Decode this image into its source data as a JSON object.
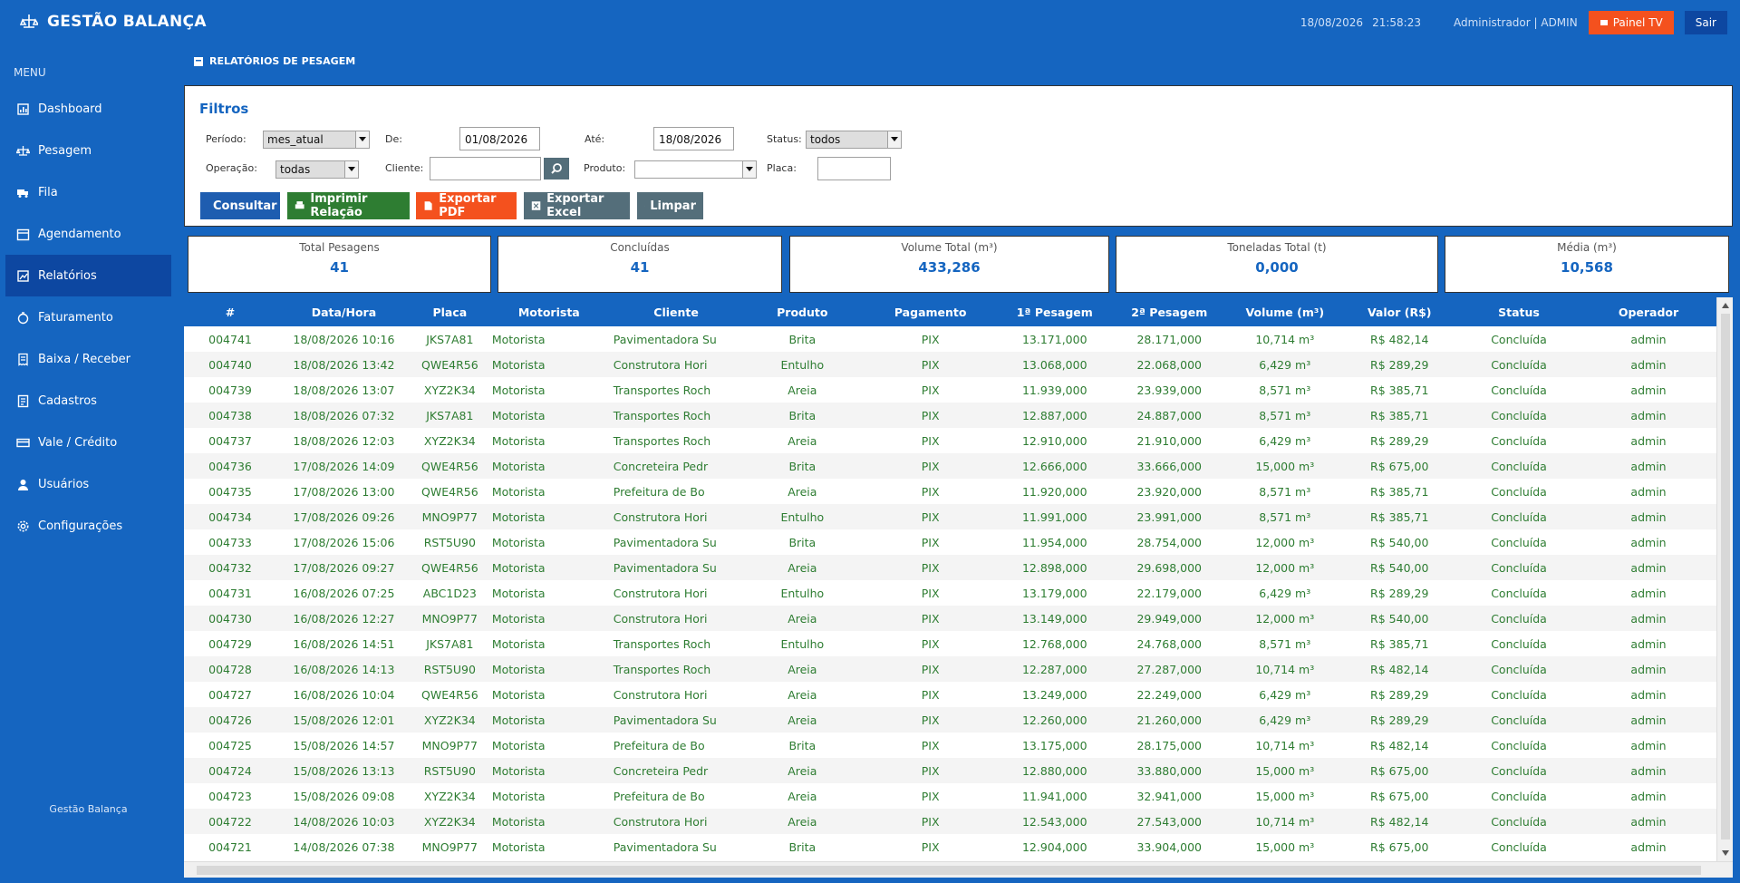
{
  "app": {
    "title": "GESTÃO BALANÇA"
  },
  "header": {
    "date": "18/08/2026",
    "time": "21:58:23",
    "user": "Administrador | ADMIN",
    "tv_label": "Painel TV",
    "logout_label": "Sair"
  },
  "sidebar": {
    "menu_title": "MENU",
    "items": [
      {
        "label": "Dashboard",
        "icon": "chart-icon"
      },
      {
        "label": "Pesagem",
        "icon": "scale-icon"
      },
      {
        "label": "Fila",
        "icon": "truck-icon"
      },
      {
        "label": "Agendamento",
        "icon": "calendar-icon"
      },
      {
        "label": "Relatórios",
        "icon": "report-icon"
      },
      {
        "label": "Faturamento",
        "icon": "money-icon"
      },
      {
        "label": "Baixa / Receber",
        "icon": "receipt-icon"
      },
      {
        "label": "Cadastros",
        "icon": "list-icon"
      },
      {
        "label": "Vale / Crédito",
        "icon": "card-icon"
      },
      {
        "label": "Usuários",
        "icon": "user-icon"
      },
      {
        "label": "Configurações",
        "icon": "gear-icon"
      }
    ],
    "active_index": 4,
    "footer": "Gestão Balança"
  },
  "page": {
    "heading": "RELATÓRIOS DE PESAGEM"
  },
  "filters": {
    "title": "Filtros",
    "periodo_label": "Período:",
    "periodo_value": "mes_atual",
    "de_label": "De:",
    "de_value": "01/08/2026",
    "ate_label": "Até:",
    "ate_value": "18/08/2026",
    "status_label": "Status:",
    "status_value": "todos",
    "operacao_label": "Operação:",
    "operacao_value": "todas",
    "cliente_label": "Cliente:",
    "cliente_value": "",
    "produto_label": "Produto:",
    "produto_value": "",
    "placa_label": "Placa:",
    "placa_value": "",
    "buttons": {
      "consultar": "Consultar",
      "imprimir": "Imprimir Relação",
      "pdf": "Exportar PDF",
      "excel": "Exportar Excel",
      "limpar": "Limpar"
    }
  },
  "kpis": {
    "total_label": "Total Pesagens",
    "total_value": "41",
    "concluidas_label": "Concluídas",
    "concluidas_value": "41",
    "volume_label": "Volume Total (m³)",
    "volume_value": "433,286",
    "toneladas_label": "Toneladas Total (t)",
    "toneladas_value": "0,000",
    "media_label": "Média (m³)",
    "media_value": "10,568"
  },
  "table": {
    "columns": [
      "#",
      "Data/Hora",
      "Placa",
      "Motorista",
      "Cliente",
      "Produto",
      "Pagamento",
      "1ª Pesagem",
      "2ª Pesagem",
      "Volume (m³)",
      "Valor (R$)",
      "Status",
      "Operador"
    ],
    "rows": [
      [
        "004741",
        "18/08/2026 10:16",
        "JKS7A81",
        "Motorista",
        "Pavimentadora Su",
        "Brita",
        "PIX",
        "13.171,000",
        "28.171,000",
        "10,714 m³",
        "R$ 482,14",
        "Concluída",
        "admin"
      ],
      [
        "004740",
        "18/08/2026 13:42",
        "QWE4R56",
        "Motorista",
        "Construtora Hori",
        "Entulho",
        "PIX",
        "13.068,000",
        "22.068,000",
        "6,429 m³",
        "R$ 289,29",
        "Concluída",
        "admin"
      ],
      [
        "004739",
        "18/08/2026 13:07",
        "XYZ2K34",
        "Motorista",
        "Transportes Roch",
        "Areia",
        "PIX",
        "11.939,000",
        "23.939,000",
        "8,571 m³",
        "R$ 385,71",
        "Concluída",
        "admin"
      ],
      [
        "004738",
        "18/08/2026 07:32",
        "JKS7A81",
        "Motorista",
        "Transportes Roch",
        "Brita",
        "PIX",
        "12.887,000",
        "24.887,000",
        "8,571 m³",
        "R$ 385,71",
        "Concluída",
        "admin"
      ],
      [
        "004737",
        "18/08/2026 12:03",
        "XYZ2K34",
        "Motorista",
        "Transportes Roch",
        "Areia",
        "PIX",
        "12.910,000",
        "21.910,000",
        "6,429 m³",
        "R$ 289,29",
        "Concluída",
        "admin"
      ],
      [
        "004736",
        "17/08/2026 14:09",
        "QWE4R56",
        "Motorista",
        "Concreteira Pedr",
        "Brita",
        "PIX",
        "12.666,000",
        "33.666,000",
        "15,000 m³",
        "R$ 675,00",
        "Concluída",
        "admin"
      ],
      [
        "004735",
        "17/08/2026 13:00",
        "QWE4R56",
        "Motorista",
        "Prefeitura de Bo",
        "Areia",
        "PIX",
        "11.920,000",
        "23.920,000",
        "8,571 m³",
        "R$ 385,71",
        "Concluída",
        "admin"
      ],
      [
        "004734",
        "17/08/2026 09:26",
        "MNO9P77",
        "Motorista",
        "Construtora Hori",
        "Entulho",
        "PIX",
        "11.991,000",
        "23.991,000",
        "8,571 m³",
        "R$ 385,71",
        "Concluída",
        "admin"
      ],
      [
        "004733",
        "17/08/2026 15:06",
        "RST5U90",
        "Motorista",
        "Pavimentadora Su",
        "Brita",
        "PIX",
        "11.954,000",
        "28.754,000",
        "12,000 m³",
        "R$ 540,00",
        "Concluída",
        "admin"
      ],
      [
        "004732",
        "17/08/2026 09:27",
        "QWE4R56",
        "Motorista",
        "Pavimentadora Su",
        "Areia",
        "PIX",
        "12.898,000",
        "29.698,000",
        "12,000 m³",
        "R$ 540,00",
        "Concluída",
        "admin"
      ],
      [
        "004731",
        "16/08/2026 07:25",
        "ABC1D23",
        "Motorista",
        "Construtora Hori",
        "Entulho",
        "PIX",
        "13.179,000",
        "22.179,000",
        "6,429 m³",
        "R$ 289,29",
        "Concluída",
        "admin"
      ],
      [
        "004730",
        "16/08/2026 12:27",
        "MNO9P77",
        "Motorista",
        "Construtora Hori",
        "Areia",
        "PIX",
        "13.149,000",
        "29.949,000",
        "12,000 m³",
        "R$ 540,00",
        "Concluída",
        "admin"
      ],
      [
        "004729",
        "16/08/2026 14:51",
        "JKS7A81",
        "Motorista",
        "Transportes Roch",
        "Entulho",
        "PIX",
        "12.768,000",
        "24.768,000",
        "8,571 m³",
        "R$ 385,71",
        "Concluída",
        "admin"
      ],
      [
        "004728",
        "16/08/2026 14:13",
        "RST5U90",
        "Motorista",
        "Transportes Roch",
        "Areia",
        "PIX",
        "12.287,000",
        "27.287,000",
        "10,714 m³",
        "R$ 482,14",
        "Concluída",
        "admin"
      ],
      [
        "004727",
        "16/08/2026 10:04",
        "QWE4R56",
        "Motorista",
        "Construtora Hori",
        "Areia",
        "PIX",
        "13.249,000",
        "22.249,000",
        "6,429 m³",
        "R$ 289,29",
        "Concluída",
        "admin"
      ],
      [
        "004726",
        "15/08/2026 12:01",
        "XYZ2K34",
        "Motorista",
        "Pavimentadora Su",
        "Areia",
        "PIX",
        "12.260,000",
        "21.260,000",
        "6,429 m³",
        "R$ 289,29",
        "Concluída",
        "admin"
      ],
      [
        "004725",
        "15/08/2026 14:57",
        "MNO9P77",
        "Motorista",
        "Prefeitura de Bo",
        "Brita",
        "PIX",
        "13.175,000",
        "28.175,000",
        "10,714 m³",
        "R$ 482,14",
        "Concluída",
        "admin"
      ],
      [
        "004724",
        "15/08/2026 13:13",
        "RST5U90",
        "Motorista",
        "Concreteira Pedr",
        "Areia",
        "PIX",
        "12.880,000",
        "33.880,000",
        "15,000 m³",
        "R$ 675,00",
        "Concluída",
        "admin"
      ],
      [
        "004723",
        "15/08/2026 09:08",
        "XYZ2K34",
        "Motorista",
        "Prefeitura de Bo",
        "Areia",
        "PIX",
        "11.941,000",
        "32.941,000",
        "15,000 m³",
        "R$ 675,00",
        "Concluída",
        "admin"
      ],
      [
        "004722",
        "14/08/2026 10:03",
        "XYZ2K34",
        "Motorista",
        "Construtora Hori",
        "Areia",
        "PIX",
        "12.543,000",
        "27.543,000",
        "10,714 m³",
        "R$ 482,14",
        "Concluída",
        "admin"
      ],
      [
        "004721",
        "14/08/2026 07:38",
        "MNO9P77",
        "Motorista",
        "Pavimentadora Su",
        "Brita",
        "PIX",
        "12.904,000",
        "33.904,000",
        "15,000 m³",
        "R$ 675,00",
        "Concluída",
        "admin"
      ]
    ]
  }
}
